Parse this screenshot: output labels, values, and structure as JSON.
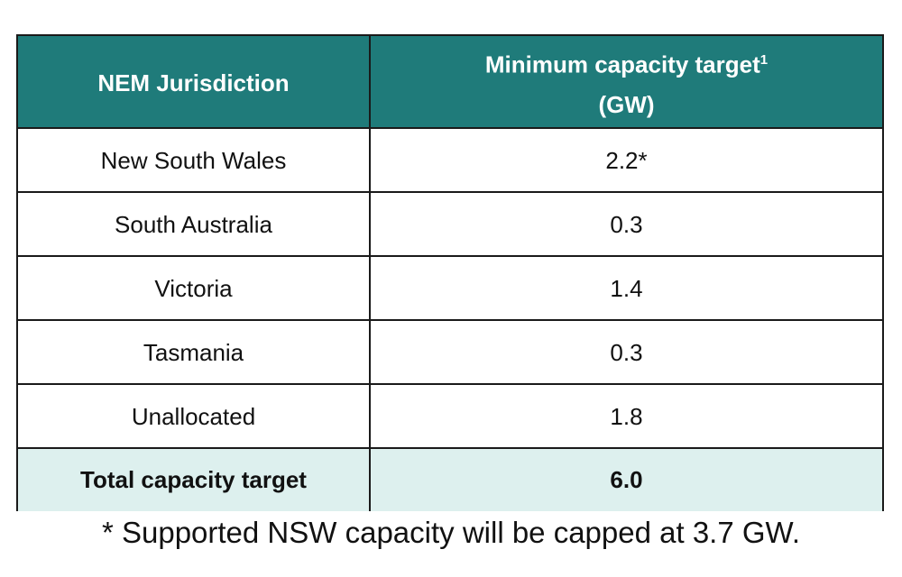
{
  "table": {
    "header": {
      "jurisdiction": "NEM Jurisdiction",
      "target": "Minimum capacity target",
      "target_note": "1",
      "target_unit": "(GW)"
    },
    "rows": [
      [
        "New South Wales",
        "2.2*"
      ],
      [
        "South Australia",
        "0.3"
      ],
      [
        "Victoria",
        "1.4"
      ],
      [
        "Tasmania",
        "0.3"
      ],
      [
        "Unallocated",
        "1.8"
      ]
    ],
    "total": [
      "Total capacity target",
      "6.0"
    ]
  },
  "footnote": "* Supported NSW capacity will be capped at 3.7 GW."
}
